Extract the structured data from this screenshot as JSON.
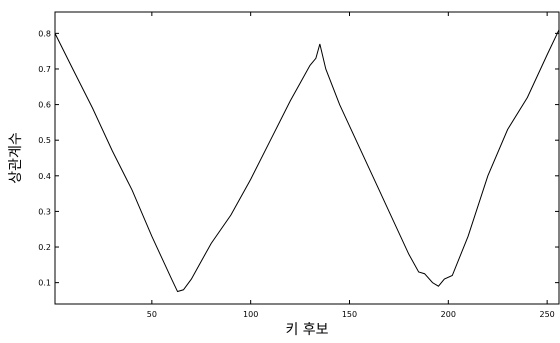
{
  "chart_data": {
    "type": "line",
    "title": "",
    "xlabel": "키  후보",
    "ylabel": "상관계수",
    "xlim": [
      1,
      256
    ],
    "ylim": [
      0.04,
      0.86
    ],
    "xticks": [
      50,
      100,
      150,
      200,
      250
    ],
    "yticks": [
      0.1,
      0.2,
      0.3,
      0.4,
      0.5,
      0.6,
      0.7,
      0.8
    ],
    "grid": false,
    "line_color": "#000000",
    "series": [
      {
        "x": [
          1,
          10,
          20,
          30,
          40,
          50,
          55,
          60,
          63,
          66,
          70,
          75,
          80,
          90,
          100,
          110,
          120,
          125,
          130,
          133,
          135,
          138,
          145,
          150,
          160,
          170,
          180,
          185,
          188,
          192,
          195,
          198,
          202,
          210,
          220,
          230,
          240,
          250,
          256
        ],
        "y": [
          0.8,
          0.7,
          0.59,
          0.47,
          0.36,
          0.23,
          0.17,
          0.11,
          0.075,
          0.08,
          0.11,
          0.16,
          0.21,
          0.29,
          0.39,
          0.5,
          0.61,
          0.66,
          0.71,
          0.73,
          0.77,
          0.7,
          0.6,
          0.54,
          0.42,
          0.3,
          0.18,
          0.13,
          0.125,
          0.1,
          0.09,
          0.11,
          0.12,
          0.23,
          0.4,
          0.53,
          0.62,
          0.74,
          0.81
        ]
      }
    ]
  }
}
